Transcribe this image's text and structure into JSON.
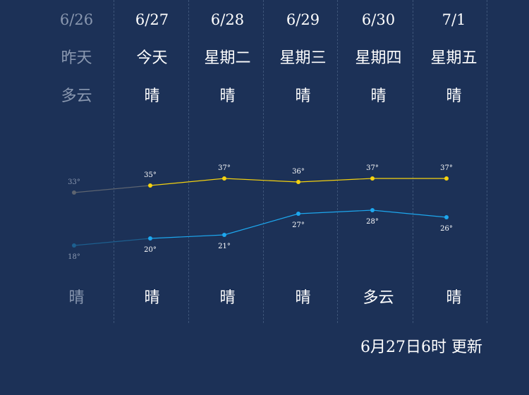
{
  "days": [
    {
      "date": "6/26",
      "day_name": "昨天",
      "weather_day": "多云",
      "weather_night": "晴"
    },
    {
      "date": "6/27",
      "day_name": "今天",
      "weather_day": "晴",
      "weather_night": "晴"
    },
    {
      "date": "6/28",
      "day_name": "星期二",
      "weather_day": "晴",
      "weather_night": "晴"
    },
    {
      "date": "6/29",
      "day_name": "星期三",
      "weather_day": "晴",
      "weather_night": "晴"
    },
    {
      "date": "6/30",
      "day_name": "星期四",
      "weather_day": "晴",
      "weather_night": "多云"
    },
    {
      "date": "7/1",
      "day_name": "星期五",
      "weather_day": "晴",
      "weather_night": "晴"
    }
  ],
  "chart_data": {
    "type": "line",
    "categories": [
      "6/26",
      "6/27",
      "6/28",
      "6/29",
      "6/30",
      "7/1"
    ],
    "series": [
      {
        "values": [
          33,
          35,
          37,
          36,
          37,
          37
        ],
        "labels": [
          "33°",
          "35°",
          "37°",
          "36°",
          "37°",
          "37°"
        ],
        "color": "#f5d20f",
        "past_color": "#5d6470"
      },
      {
        "values": [
          18,
          20,
          21,
          27,
          28,
          26
        ],
        "labels": [
          "18°",
          "20°",
          "21°",
          "27°",
          "28°",
          "26°"
        ],
        "color": "#1da7ee",
        "past_color": "#1d5f8f"
      }
    ]
  },
  "update_text": "6月27日6时 更新",
  "colors": {
    "background": "#1c3157",
    "text": "#ffffff",
    "past_text": "#8a98b0",
    "divider": "#3d5478"
  }
}
